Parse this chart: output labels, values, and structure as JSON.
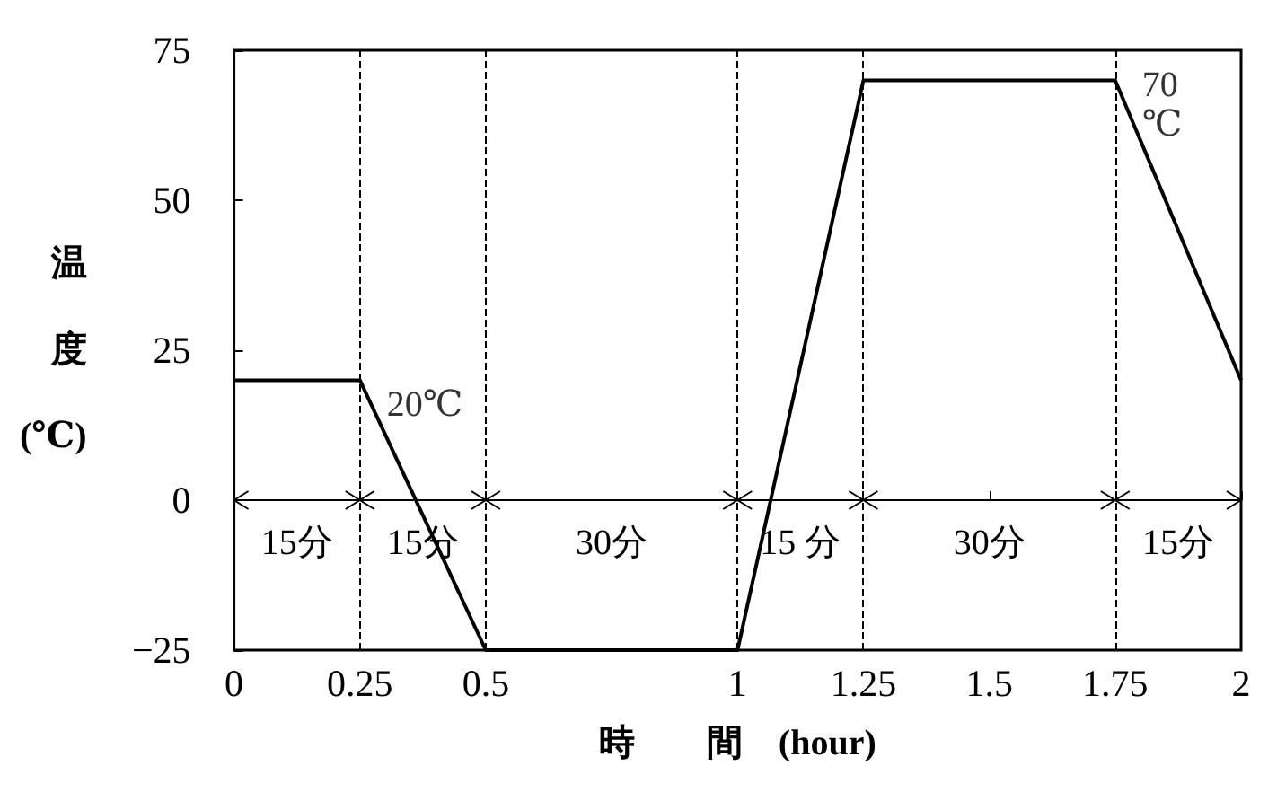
{
  "chart_data": {
    "type": "line",
    "xlabel": "時　　間　(hour)",
    "ylabel": "温度(℃)",
    "series": [
      {
        "color": "#000000",
        "x": [
          0,
          0.25,
          0.5,
          1,
          1.25,
          1.75,
          2
        ],
        "values": [
          20,
          20,
          -25,
          -25,
          70,
          70,
          20
        ]
      }
    ],
    "xlim": [
      0,
      2
    ],
    "xticks": [
      0,
      0.25,
      0.5,
      1,
      1.25,
      1.5,
      1.75,
      2
    ],
    "ylim": [
      -25,
      75
    ],
    "yticks": [
      {
        "value": -25,
        "label": "−25"
      },
      0,
      25,
      50,
      75
    ],
    "grid": false,
    "marker": "none",
    "line_style": "solid",
    "ref_lines": [
      {
        "axis": "x",
        "value": 0.25,
        "line_style": "dashed"
      },
      {
        "axis": "x",
        "value": 0.5,
        "line_style": "dashed"
      },
      {
        "axis": "x",
        "value": 1,
        "line_style": "dashed"
      },
      {
        "axis": "x",
        "value": 1.25,
        "line_style": "dashed"
      },
      {
        "axis": "x",
        "value": 1.75,
        "line_style": "dashed"
      }
    ],
    "annotations": [
      {
        "text": "20℃",
        "x": 0.25,
        "y": 20
      },
      {
        "text": "70\n℃",
        "x": 1.75,
        "y": 70
      },
      "15分",
      "15分",
      "30分",
      "15 分",
      "30分",
      "15分"
    ]
  }
}
